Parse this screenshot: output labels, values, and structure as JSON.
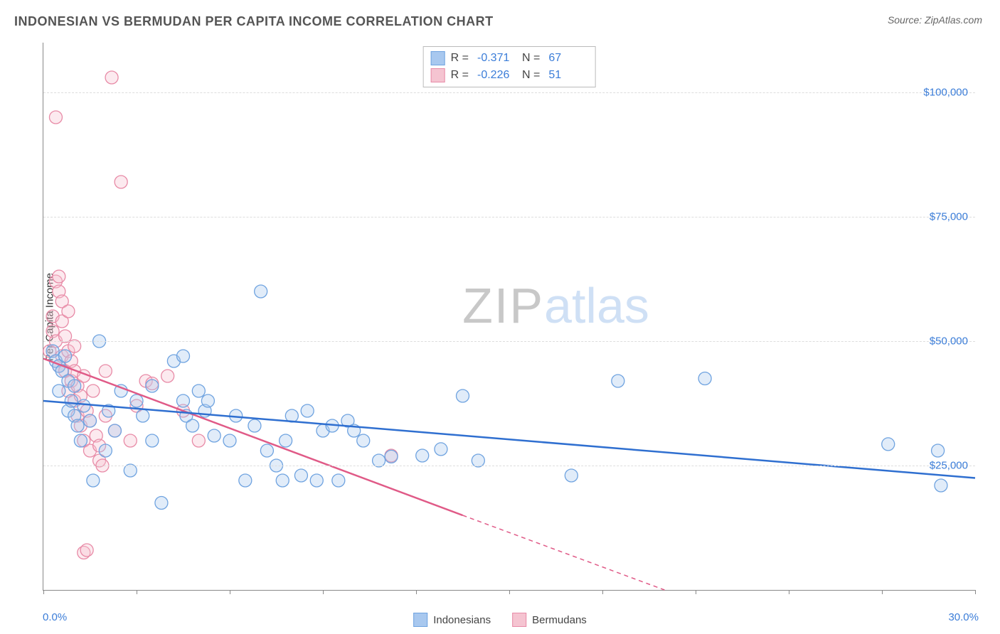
{
  "title": "INDONESIAN VS BERMUDAN PER CAPITA INCOME CORRELATION CHART",
  "source_label": "Source: ",
  "source_value": "ZipAtlas.com",
  "ylabel": "Per Capita Income",
  "chart": {
    "type": "scatter",
    "xlim": [
      0,
      30
    ],
    "ylim": [
      0,
      110000
    ],
    "x_tick_positions": [
      0,
      3,
      6,
      9,
      12,
      15,
      18,
      21,
      24,
      27,
      30
    ],
    "x_axis_min_label": "0.0%",
    "x_axis_max_label": "30.0%",
    "y_gridlines": [
      25000,
      50000,
      75000,
      100000
    ],
    "y_tick_labels": [
      "$25,000",
      "$50,000",
      "$75,000",
      "$100,000"
    ],
    "background_color": "#ffffff",
    "grid_color": "#dddddd",
    "axis_color": "#888888",
    "tick_label_color": "#3b7dd8",
    "point_radius": 9,
    "point_fill_opacity": 0.35,
    "point_stroke_width": 1.3,
    "line_width": 2.5,
    "dash_pattern": "6,5",
    "series": [
      {
        "name": "Indonesians",
        "color_fill": "#a8c8ef",
        "color_stroke": "#6fa3e0",
        "line_color": "#2f6fd0",
        "r_label": "R  =",
        "r_value": "-0.371",
        "n_label": "N  =",
        "n_value": "67",
        "regression": {
          "x1": 0,
          "y1": 38000,
          "x2": 30,
          "y2": 22500
        },
        "points": [
          [
            0.3,
            48000
          ],
          [
            0.4,
            46000
          ],
          [
            0.5,
            45000
          ],
          [
            0.5,
            40000
          ],
          [
            0.6,
            44000
          ],
          [
            0.7,
            47000
          ],
          [
            0.8,
            42000
          ],
          [
            0.8,
            36000
          ],
          [
            0.9,
            38000
          ],
          [
            1.0,
            35000
          ],
          [
            1.0,
            41000
          ],
          [
            1.1,
            33000
          ],
          [
            1.2,
            30000
          ],
          [
            1.3,
            37000
          ],
          [
            1.5,
            34000
          ],
          [
            1.6,
            22000
          ],
          [
            1.8,
            50000
          ],
          [
            2.0,
            28000
          ],
          [
            2.1,
            36000
          ],
          [
            2.3,
            32000
          ],
          [
            2.5,
            40000
          ],
          [
            2.8,
            24000
          ],
          [
            3.0,
            38000
          ],
          [
            3.2,
            35000
          ],
          [
            3.5,
            30000
          ],
          [
            3.5,
            41000
          ],
          [
            3.8,
            17500
          ],
          [
            4.2,
            46000
          ],
          [
            4.5,
            47000
          ],
          [
            4.5,
            38000
          ],
          [
            4.6,
            35000
          ],
          [
            4.8,
            33000
          ],
          [
            5.0,
            40000
          ],
          [
            5.2,
            36000
          ],
          [
            5.3,
            38000
          ],
          [
            5.5,
            31000
          ],
          [
            6.0,
            30000
          ],
          [
            6.2,
            35000
          ],
          [
            6.5,
            22000
          ],
          [
            6.8,
            33000
          ],
          [
            7.0,
            60000
          ],
          [
            7.2,
            28000
          ],
          [
            7.5,
            25000
          ],
          [
            7.7,
            22000
          ],
          [
            7.8,
            30000
          ],
          [
            8.0,
            35000
          ],
          [
            8.3,
            23000
          ],
          [
            8.5,
            36000
          ],
          [
            8.8,
            22000
          ],
          [
            9.0,
            32000
          ],
          [
            9.3,
            33000
          ],
          [
            9.5,
            22000
          ],
          [
            9.8,
            34000
          ],
          [
            10.0,
            32000
          ],
          [
            10.3,
            30000
          ],
          [
            10.8,
            26000
          ],
          [
            11.2,
            26800
          ],
          [
            12.2,
            27000
          ],
          [
            12.8,
            28300
          ],
          [
            13.5,
            39000
          ],
          [
            14.0,
            26000
          ],
          [
            17.0,
            23000
          ],
          [
            18.5,
            42000
          ],
          [
            21.3,
            42500
          ],
          [
            27.2,
            29300
          ],
          [
            28.8,
            28000
          ],
          [
            28.9,
            21000
          ]
        ]
      },
      {
        "name": "Bermudans",
        "color_fill": "#f5c4d1",
        "color_stroke": "#e88ba7",
        "line_color": "#e05a87",
        "r_label": "R  =",
        "r_value": "-0.226",
        "n_label": "N  =",
        "n_value": "51",
        "regression": {
          "x1": 0,
          "y1": 46500,
          "x2": 13.5,
          "y2": 15000
        },
        "regression_ext": {
          "x1": 13.5,
          "y1": 15000,
          "x2": 20,
          "y2": 0
        },
        "points": [
          [
            0.2,
            48000
          ],
          [
            0.3,
            55000
          ],
          [
            0.3,
            52000
          ],
          [
            0.4,
            50000
          ],
          [
            0.4,
            62000
          ],
          [
            0.5,
            63000
          ],
          [
            0.5,
            60000
          ],
          [
            0.5,
            45000
          ],
          [
            0.6,
            58000
          ],
          [
            0.6,
            54000
          ],
          [
            0.6,
            47000
          ],
          [
            0.7,
            51000
          ],
          [
            0.7,
            44000
          ],
          [
            0.8,
            56000
          ],
          [
            0.8,
            48000
          ],
          [
            0.8,
            40000
          ],
          [
            0.9,
            46000
          ],
          [
            0.9,
            42000
          ],
          [
            1.0,
            49000
          ],
          [
            1.0,
            38000
          ],
          [
            1.0,
            44000
          ],
          [
            1.1,
            41000
          ],
          [
            1.1,
            35000
          ],
          [
            1.2,
            39000
          ],
          [
            1.2,
            33000
          ],
          [
            1.3,
            43000
          ],
          [
            1.3,
            30000
          ],
          [
            1.4,
            36000
          ],
          [
            1.5,
            34000
          ],
          [
            1.5,
            28000
          ],
          [
            1.6,
            40000
          ],
          [
            1.7,
            31000
          ],
          [
            1.8,
            29000
          ],
          [
            1.8,
            26000
          ],
          [
            2.0,
            44000
          ],
          [
            2.0,
            35000
          ],
          [
            2.2,
            103000
          ],
          [
            2.3,
            32000
          ],
          [
            2.5,
            82000
          ],
          [
            1.3,
            7500
          ],
          [
            1.4,
            8000
          ],
          [
            2.8,
            30000
          ],
          [
            0.4,
            95000
          ],
          [
            3.0,
            37000
          ],
          [
            3.3,
            42000
          ],
          [
            3.5,
            41500
          ],
          [
            4.0,
            43000
          ],
          [
            4.5,
            36000
          ],
          [
            5.0,
            30000
          ],
          [
            11.2,
            27000
          ],
          [
            1.9,
            25000
          ]
        ]
      }
    ]
  },
  "bottom_legend": [
    {
      "label": "Indonesians",
      "fill": "#a8c8ef",
      "stroke": "#6fa3e0"
    },
    {
      "label": "Bermudans",
      "fill": "#f5c4d1",
      "stroke": "#e88ba7"
    }
  ],
  "watermark": {
    "part1": "ZIP",
    "part2": "atlas"
  }
}
